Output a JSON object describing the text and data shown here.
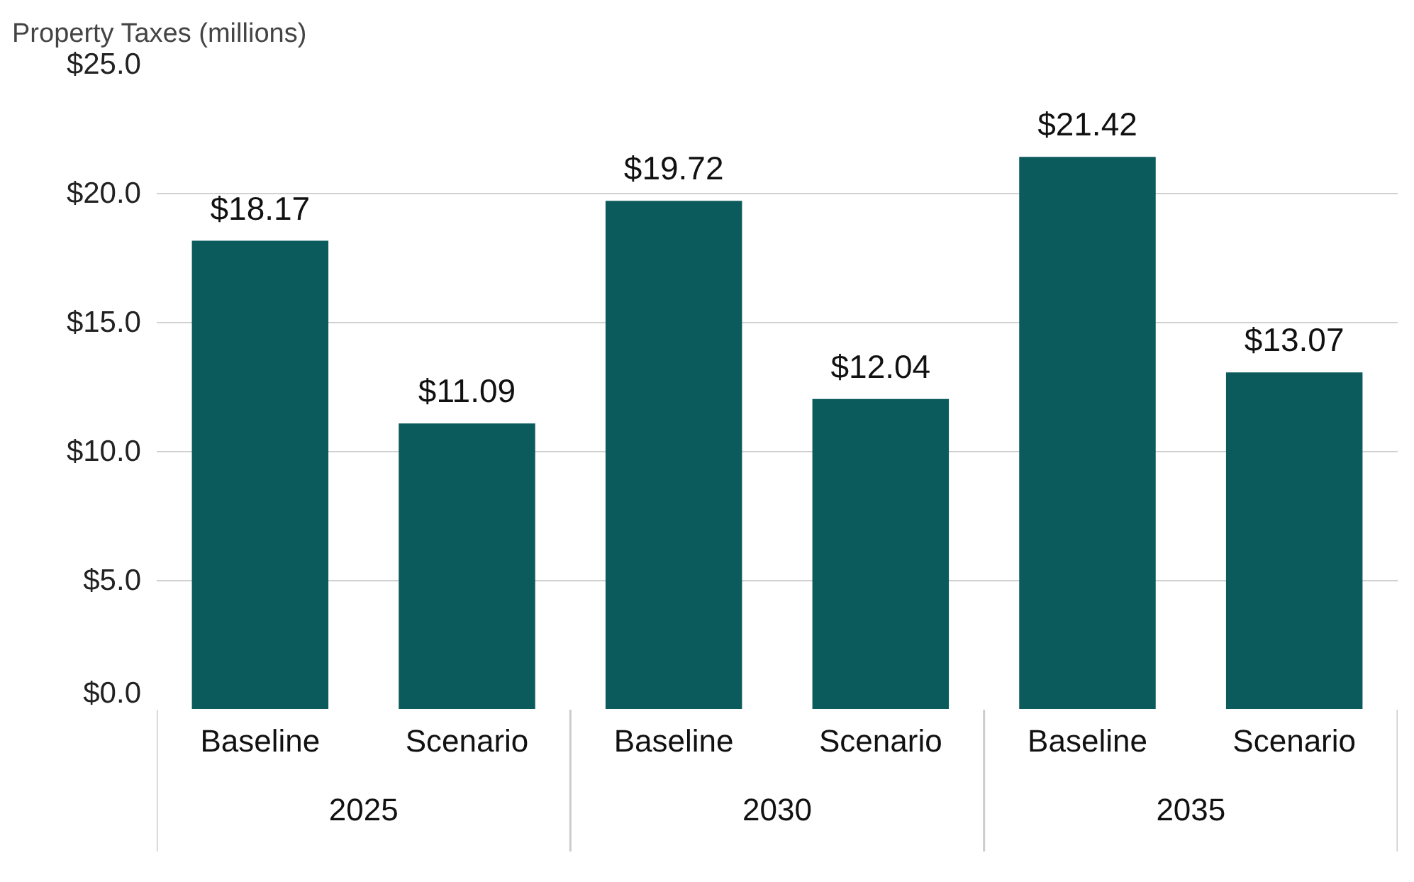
{
  "chart_data": {
    "type": "bar",
    "ylabel": "Property Taxes (millions)",
    "categories": [
      "Baseline",
      "Scenario",
      "Baseline",
      "Scenario",
      "Baseline",
      "Scenario"
    ],
    "annotations": [
      "2025",
      "2030",
      "2035"
    ],
    "values": [
      18.17,
      11.09,
      19.72,
      12.04,
      21.42,
      13.07
    ],
    "value_labels": [
      "$18.17",
      "$11.09",
      "$19.72",
      "$12.04",
      "$21.42",
      "$13.07"
    ],
    "color": "#0b5b5c",
    "ylim": [
      0,
      25
    ],
    "yticks": [
      {
        "value": 0,
        "label": "$0.0"
      },
      {
        "value": 5,
        "label": "$5.0"
      },
      {
        "value": 10,
        "label": "$10.0"
      },
      {
        "value": 15,
        "label": "$15.0"
      },
      {
        "value": 20,
        "label": "$20.0"
      },
      {
        "value": 25,
        "label": "$25.0"
      }
    ],
    "grid": "y"
  }
}
